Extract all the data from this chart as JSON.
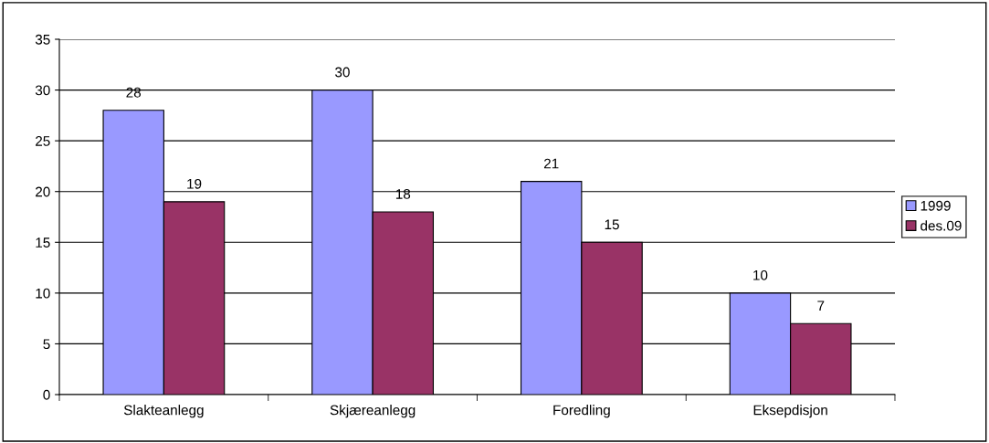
{
  "chart_data": {
    "type": "bar",
    "categories": [
      "Slakteanlegg",
      "Skjæreanlegg",
      "Foredling",
      "Eksepdisjon"
    ],
    "series": [
      {
        "name": "1999",
        "color": "#9999ff",
        "values": [
          28,
          30,
          21,
          10
        ]
      },
      {
        "name": "des.09",
        "color": "#993366",
        "values": [
          19,
          18,
          15,
          7
        ]
      }
    ],
    "ylim": [
      0,
      35
    ],
    "yticks": [
      0,
      5,
      10,
      15,
      20,
      25,
      30,
      35
    ],
    "grid": "y",
    "legend": "right",
    "data_labels": true
  }
}
